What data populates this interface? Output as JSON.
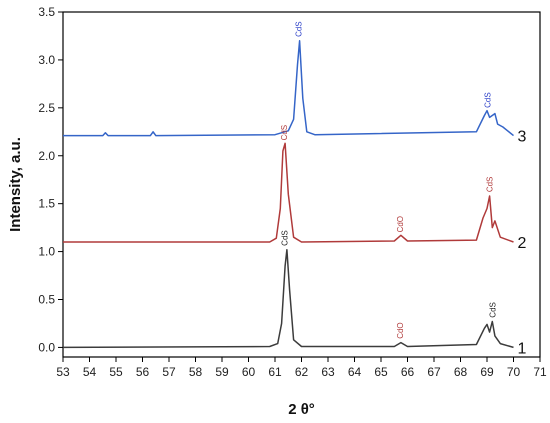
{
  "chart_data": {
    "type": "line",
    "title": "",
    "xlabel": "2 θ°",
    "ylabel": "Intensity, a.u.",
    "xlim": [
      53,
      71
    ],
    "ylim": [
      -0.1,
      3.5
    ],
    "xticks": [
      "53",
      "54",
      "55",
      "56",
      "57",
      "58",
      "59",
      "60",
      "61",
      "62",
      "63",
      "64",
      "65",
      "66",
      "67",
      "68",
      "69",
      "70",
      "71"
    ],
    "yticks": [
      "0.0",
      "0.5",
      "1.0",
      "1.5",
      "2.0",
      "2.5",
      "3.0",
      "3.5"
    ],
    "grid": false,
    "series": [
      {
        "name": "1",
        "color": "#3c3c3c",
        "x": [
          53.0,
          60.8,
          61.1,
          61.25,
          61.38,
          61.45,
          61.55,
          61.7,
          62.0,
          65.5,
          65.75,
          66.0,
          68.6,
          68.9,
          69.0,
          69.1,
          69.2,
          69.3,
          69.5,
          70.0
        ],
        "y": [
          0.0,
          0.01,
          0.04,
          0.25,
          0.85,
          1.02,
          0.6,
          0.08,
          0.01,
          0.01,
          0.05,
          0.01,
          0.03,
          0.2,
          0.24,
          0.16,
          0.27,
          0.12,
          0.04,
          0.0
        ]
      },
      {
        "name": "2",
        "color": "#b03a3a",
        "x": [
          53.0,
          60.8,
          61.05,
          61.2,
          61.3,
          61.38,
          61.5,
          61.7,
          62.0,
          65.5,
          65.75,
          66.0,
          68.6,
          68.85,
          69.0,
          69.1,
          69.2,
          69.3,
          69.5,
          70.0
        ],
        "y": [
          1.1,
          1.1,
          1.14,
          1.45,
          2.05,
          2.13,
          1.6,
          1.15,
          1.1,
          1.11,
          1.17,
          1.11,
          1.12,
          1.35,
          1.45,
          1.58,
          1.25,
          1.32,
          1.15,
          1.1
        ]
      },
      {
        "name": "3",
        "color": "#3565c8",
        "x": [
          53.0,
          54.5,
          54.6,
          54.7,
          56.3,
          56.4,
          56.5,
          61.0,
          61.5,
          61.7,
          61.85,
          61.93,
          62.05,
          62.2,
          62.5,
          68.6,
          68.9,
          69.0,
          69.1,
          69.3,
          69.4,
          69.6,
          70.0
        ],
        "y": [
          2.21,
          2.21,
          2.24,
          2.21,
          2.21,
          2.25,
          2.21,
          2.22,
          2.26,
          2.38,
          2.95,
          3.2,
          2.6,
          2.25,
          2.22,
          2.25,
          2.42,
          2.47,
          2.4,
          2.44,
          2.33,
          2.3,
          2.21
        ]
      }
    ],
    "annotations": [
      {
        "text": "CdS",
        "x": 61.4,
        "y": 1.06,
        "color": "#222222"
      },
      {
        "text": "CdO",
        "x": 65.75,
        "y": 0.09,
        "color": "#b03a3a"
      },
      {
        "text": "CdS",
        "x": 69.25,
        "y": 0.31,
        "color": "#222222"
      },
      {
        "text": "CdS",
        "x": 61.38,
        "y": 2.16,
        "color": "#b03a3a"
      },
      {
        "text": "CdO",
        "x": 65.75,
        "y": 1.2,
        "color": "#b03a3a"
      },
      {
        "text": "CdS",
        "x": 69.12,
        "y": 1.62,
        "color": "#b03a3a"
      },
      {
        "text": "CdS",
        "x": 61.93,
        "y": 3.24,
        "color": "#2b3fc8"
      },
      {
        "text": "CdS",
        "x": 69.05,
        "y": 2.5,
        "color": "#2b3fc8"
      }
    ]
  }
}
